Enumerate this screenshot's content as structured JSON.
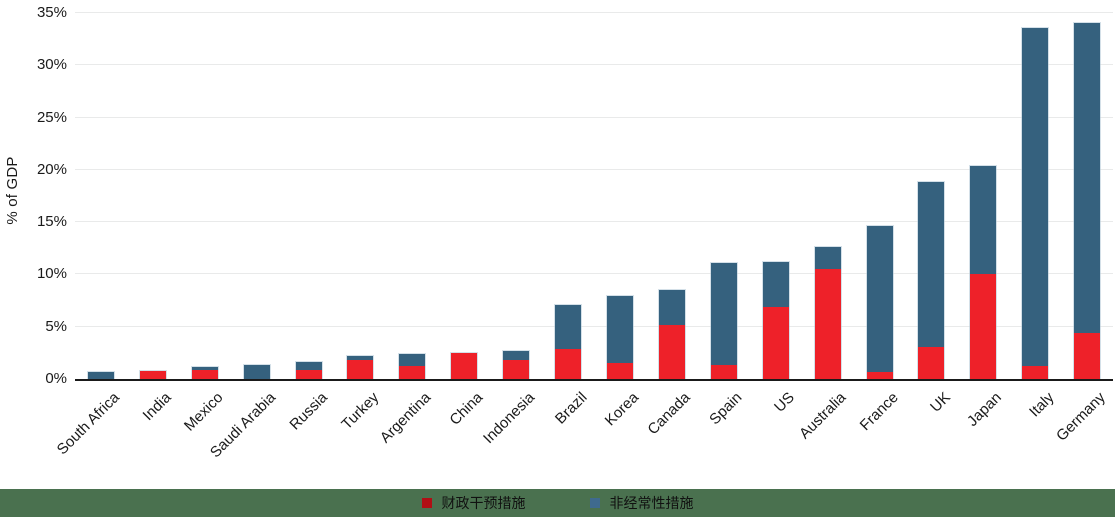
{
  "chart_data": {
    "type": "bar",
    "stacked": true,
    "ylabel": "% of GDP",
    "unit": "%",
    "ylim": [
      0,
      35
    ],
    "ytick_step": 5,
    "ytick_labels": [
      "0%",
      "5%",
      "10%",
      "15%",
      "20%",
      "25%",
      "30%",
      "35%"
    ],
    "grid": "horizontal",
    "legend_position": "bottom",
    "categories": [
      "South Africa",
      "India",
      "Mexico",
      "Saudi Arabia",
      "Russia",
      "Turkey",
      "Argentina",
      "China",
      "Indonesia",
      "Brazil",
      "Korea",
      "Canada",
      "Spain",
      "US",
      "Australia",
      "France",
      "UK",
      "Japan",
      "Italy",
      "Germany"
    ],
    "series": [
      {
        "name": "财政干预措施",
        "color": "#ee2129",
        "values": [
          0,
          0.75,
          0.85,
          0,
          0.9,
          1.8,
          1.2,
          2.5,
          1.8,
          2.9,
          1.5,
          5.2,
          1.3,
          6.9,
          10.5,
          0.7,
          3.1,
          10.0,
          1.2,
          4.4
        ]
      },
      {
        "name": "非经常性措施",
        "color": "#35617e",
        "values": [
          0.65,
          0,
          0.3,
          1.3,
          0.7,
          0.4,
          1.2,
          0,
          0.9,
          4.2,
          6.4,
          3.3,
          9.8,
          4.25,
          2.1,
          13.9,
          15.7,
          10.4,
          32.4,
          29.6
        ]
      }
    ]
  },
  "legend": {
    "band_color": "#4a714f",
    "items": [
      {
        "label": "财政干预措施",
        "swatch_color": "#b00f15"
      },
      {
        "label": "非经常性措施",
        "swatch_color": "#3f6a8e"
      }
    ]
  },
  "colors": {
    "fiscal_bar": "#ee2129",
    "nonrecurring_bar": "#35617e",
    "gridline": "#e9eaea",
    "axis_line": "#1a1a1a",
    "text": "#1a1a1a"
  }
}
